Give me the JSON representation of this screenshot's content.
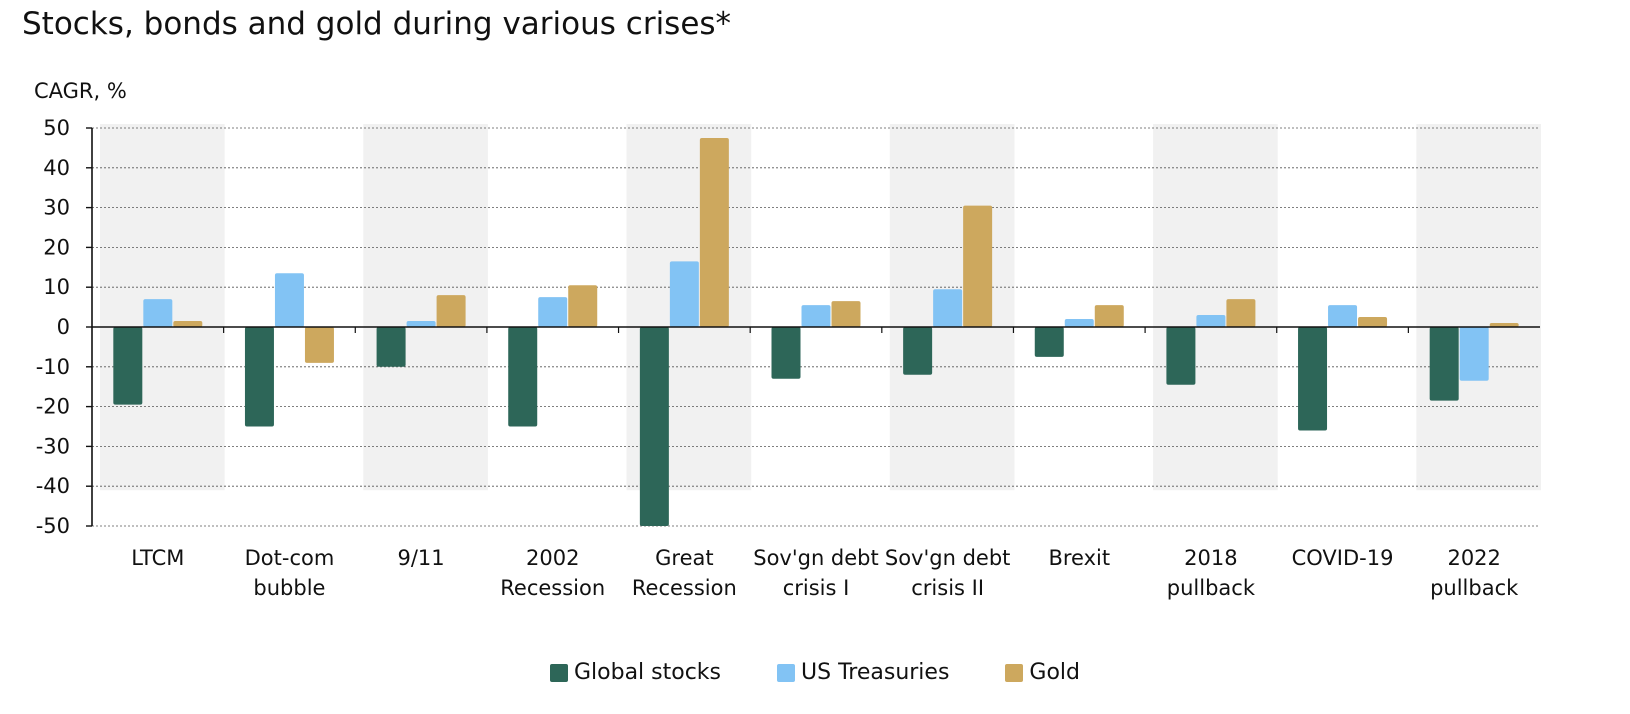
{
  "title": "Stocks, bonds and gold during various crises*",
  "chart_data": {
    "type": "bar",
    "title": "Stocks, bonds and gold during various crises*",
    "ylabel": "CAGR, %",
    "xlabel": "",
    "ylim": [
      -50,
      50
    ],
    "yticks": [
      50,
      40,
      30,
      20,
      10,
      0,
      -10,
      -20,
      -30,
      -40,
      -50
    ],
    "grid": true,
    "legend_position": "bottom-center",
    "categories": [
      [
        "LTCM"
      ],
      [
        "Dot-com",
        "bubble"
      ],
      [
        "9/11"
      ],
      [
        "2002",
        "Recession"
      ],
      [
        "Great",
        "Recession"
      ],
      [
        "Sov'gn debt",
        "crisis I"
      ],
      [
        "Sov'gn debt",
        "crisis II"
      ],
      [
        "Brexit"
      ],
      [
        "2018",
        "pullback"
      ],
      [
        "COVID-19"
      ],
      [
        "2022",
        "pullback"
      ]
    ],
    "shaded_periods": [
      0,
      2,
      4,
      6,
      8,
      10
    ],
    "series": [
      {
        "name": "Global stocks",
        "color": "#2d6658",
        "values": [
          -19.5,
          -25,
          -10,
          -25,
          -50,
          -13,
          -12,
          -7.5,
          -14.5,
          -26,
          -18.5
        ]
      },
      {
        "name": "US Treasuries",
        "color": "#82c3f4",
        "values": [
          7,
          13.5,
          1.5,
          7.5,
          16.5,
          5.5,
          9.5,
          2,
          3,
          5.5,
          -13.5
        ]
      },
      {
        "name": "Gold",
        "color": "#cda85e",
        "values": [
          1.5,
          -9,
          8,
          10.5,
          47.5,
          6.5,
          30.5,
          5.5,
          7,
          2.5,
          1
        ]
      }
    ]
  }
}
